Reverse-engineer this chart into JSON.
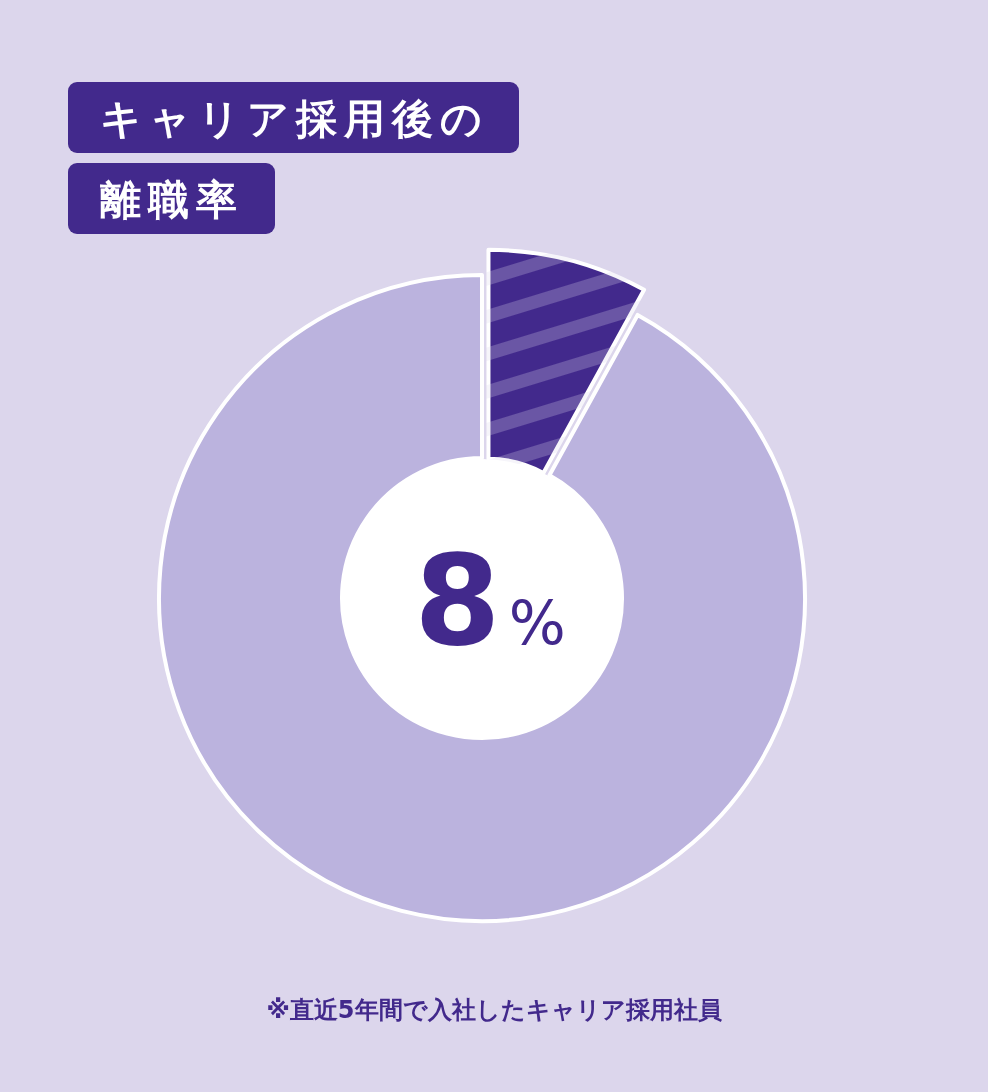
{
  "chart_data": {
    "type": "donut",
    "title": "キャリア採用後の離職率",
    "categories": [
      null,
      null
    ],
    "values": [
      8,
      92
    ],
    "colors": [
      "#42298c",
      "#bbb3de"
    ],
    "annotations": [
      "8%",
      "※直近5年間で入社したキャリア採用社員"
    ]
  }
}
